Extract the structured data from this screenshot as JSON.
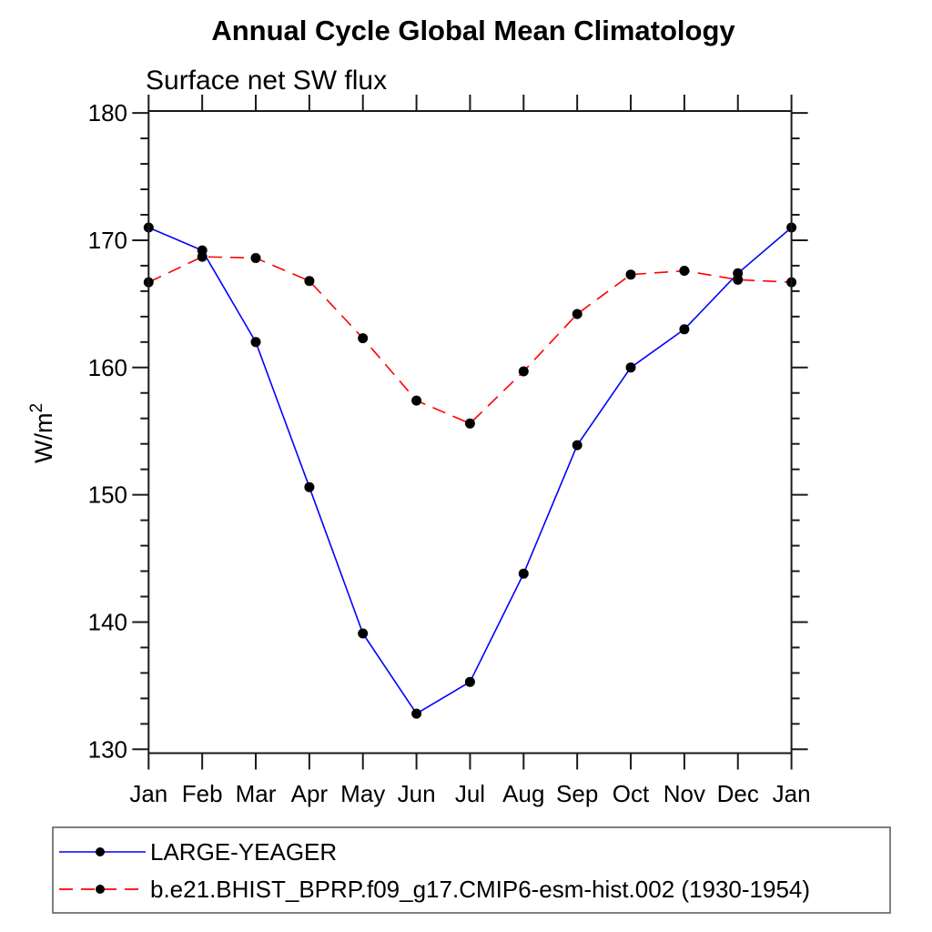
{
  "chart_data": {
    "type": "line",
    "title": "Annual Cycle Global Mean Climatology",
    "subtitle": "Surface net SW flux",
    "ylabel": {
      "base": "W/m",
      "sup": "2"
    },
    "categories": [
      "Jan",
      "Feb",
      "Mar",
      "Apr",
      "May",
      "Jun",
      "Jul",
      "Aug",
      "Sep",
      "Oct",
      "Nov",
      "Dec",
      "Jan"
    ],
    "ylim": [
      129.7,
      180.15
    ],
    "yticks_major": [
      130,
      140,
      150,
      160,
      170,
      180
    ],
    "ytick_minor_step": 2,
    "grid": false,
    "legend_position": "bottom-left-box",
    "marker_color": "#000000",
    "series": [
      {
        "name": "LARGE-YEAGER",
        "color": "#0000ff",
        "style": "solid",
        "values": [
          171.0,
          169.2,
          162.0,
          150.6,
          139.1,
          132.8,
          135.3,
          143.8,
          153.9,
          160.0,
          163.0,
          167.4,
          171.0
        ]
      },
      {
        "name": "b.e21.BHIST_BPRP.f09_g17.CMIP6-esm-hist.002 (1930-1954)",
        "color": "#ff0000",
        "style": "dashed",
        "values": [
          166.7,
          168.7,
          168.6,
          166.8,
          162.3,
          157.4,
          155.6,
          159.7,
          164.2,
          167.3,
          167.6,
          166.9,
          166.7
        ]
      }
    ]
  }
}
